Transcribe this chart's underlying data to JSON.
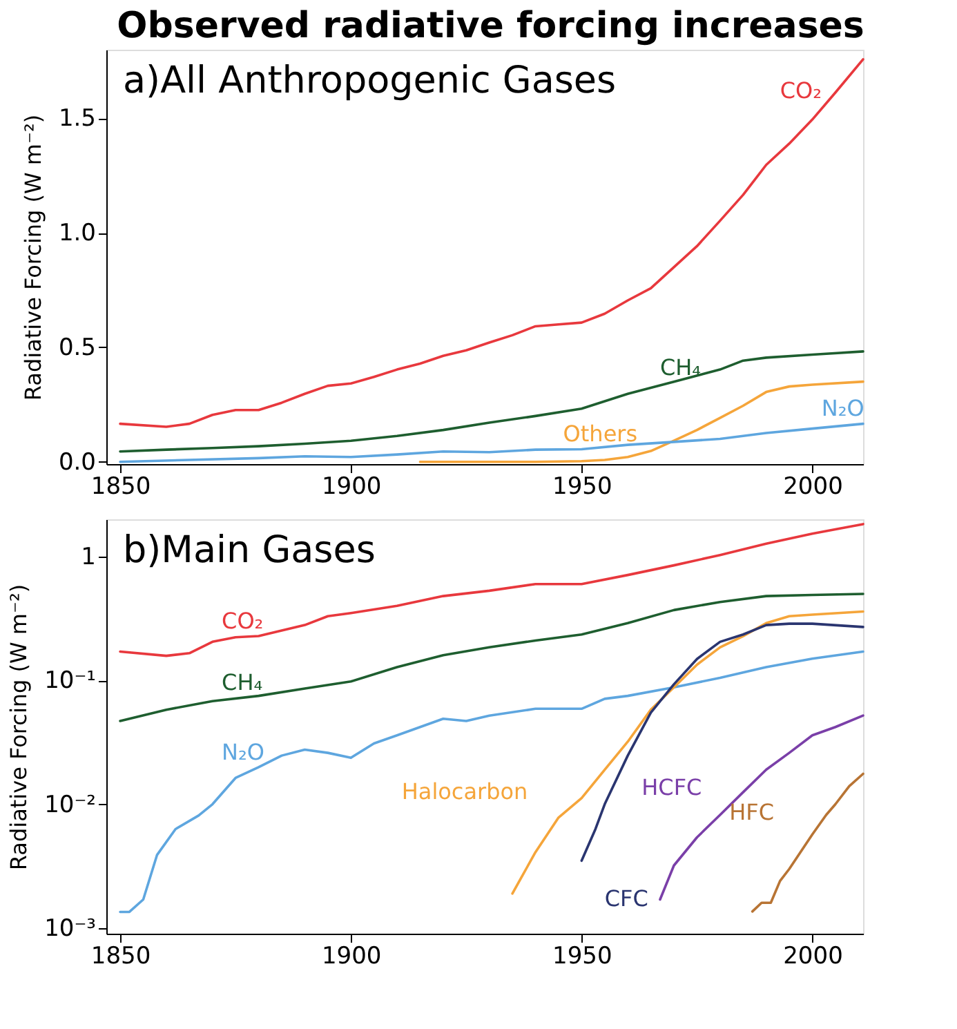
{
  "chart_data": [
    {
      "type": "line",
      "title": "Observed radiative forcing increases",
      "subtitle": "a)All Anthropogenic Gases",
      "ylabel": "Radiative Forcing (W m⁻²)",
      "xlim": [
        1847,
        2011
      ],
      "xticks": [
        1850,
        1900,
        1950,
        2000
      ],
      "ylim": [
        -0.01,
        1.8
      ],
      "yticks": [
        {
          "value": 0,
          "label": "0.0"
        },
        0.5,
        {
          "value": 1,
          "label": "1.0"
        },
        1.5
      ],
      "grid": false,
      "series": [
        {
          "name": "CO₂",
          "color": "#e8383d",
          "x": [
            1850,
            1860,
            1865,
            1870,
            1875,
            1880,
            1885,
            1890,
            1895,
            1900,
            1905,
            1910,
            1915,
            1920,
            1925,
            1930,
            1935,
            1940,
            1945,
            1950,
            1955,
            1960,
            1965,
            1970,
            1975,
            1980,
            1985,
            1990,
            1995,
            2000,
            2005,
            2011
          ],
          "values": [
            0.166,
            0.153,
            0.166,
            0.205,
            0.226,
            0.226,
            0.258,
            0.297,
            0.332,
            0.342,
            0.371,
            0.403,
            0.429,
            0.463,
            0.487,
            0.521,
            0.553,
            0.592,
            0.6,
            0.608,
            0.647,
            0.705,
            0.758,
            0.85,
            0.942,
            1.053,
            1.166,
            1.297,
            1.39,
            1.495,
            1.613,
            1.758
          ]
        },
        {
          "name": "CH₄",
          "color": "#1e5e2f",
          "x": [
            1850,
            1860,
            1870,
            1880,
            1890,
            1900,
            1910,
            1920,
            1930,
            1940,
            1950,
            1960,
            1970,
            1980,
            1985,
            1990,
            2000,
            2011
          ],
          "values": [
            0.045,
            0.053,
            0.06,
            0.068,
            0.079,
            0.092,
            0.113,
            0.139,
            0.171,
            0.2,
            0.232,
            0.297,
            0.35,
            0.403,
            0.442,
            0.455,
            0.468,
            0.482
          ]
        },
        {
          "name": "Others",
          "color": "#f5a53a",
          "x": [
            1915,
            1940,
            1950,
            1955,
            1960,
            1965,
            1970,
            1975,
            1980,
            1985,
            1990,
            1995,
            2000,
            2011
          ],
          "values": [
            0,
            0,
            0.003,
            0.008,
            0.021,
            0.047,
            0.092,
            0.139,
            0.192,
            0.245,
            0.305,
            0.329,
            0.337,
            0.35
          ]
        },
        {
          "name": "N₂O",
          "color": "#5ea6df",
          "x": [
            1850,
            1880,
            1890,
            1900,
            1910,
            1920,
            1930,
            1940,
            1950,
            1960,
            1970,
            1980,
            1990,
            2000,
            2011
          ],
          "values": [
            0,
            0.016,
            0.024,
            0.021,
            0.032,
            0.045,
            0.042,
            0.053,
            0.055,
            0.074,
            0.087,
            0.1,
            0.126,
            0.145,
            0.166
          ]
        }
      ]
    },
    {
      "type": "line",
      "subtitle": "b)Main Gases",
      "ylabel": "Radiative Forcing (W m⁻²)",
      "xlim": [
        1847,
        2011
      ],
      "xticks": [
        1850,
        1900,
        1950,
        2000
      ],
      "ylim": [
        0.0009,
        2
      ],
      "yticks": [
        {
          "value": 0.001,
          "label": "10⁻³"
        },
        {
          "value": 0.01,
          "label": "10⁻²"
        },
        {
          "value": 0.1,
          "label": "10⁻¹"
        },
        1
      ],
      "log": true,
      "grid": false,
      "series": [
        {
          "name": "CO₂",
          "color": "#e8383d",
          "x": [
            1850,
            1860,
            1865,
            1870,
            1875,
            1880,
            1890,
            1895,
            1900,
            1910,
            1920,
            1930,
            1940,
            1950,
            1960,
            1970,
            1980,
            1990,
            2000,
            2011
          ],
          "values": [
            0.171,
            0.158,
            0.166,
            0.205,
            0.223,
            0.228,
            0.28,
            0.33,
            0.35,
            0.4,
            0.48,
            0.53,
            0.6,
            0.6,
            0.71,
            0.85,
            1.03,
            1.27,
            1.53,
            1.83
          ]
        },
        {
          "name": "CH₄",
          "color": "#1e5e2f",
          "x": [
            1850,
            1860,
            1870,
            1880,
            1890,
            1900,
            1910,
            1920,
            1930,
            1940,
            1950,
            1960,
            1970,
            1980,
            1990,
            2000,
            2011
          ],
          "values": [
            0.047,
            0.058,
            0.068,
            0.075,
            0.086,
            0.098,
            0.128,
            0.16,
            0.185,
            0.21,
            0.235,
            0.29,
            0.37,
            0.43,
            0.48,
            0.49,
            0.5
          ]
        },
        {
          "name": "N₂O",
          "color": "#5ea6df",
          "x": [
            1850,
            1852,
            1855,
            1858,
            1862,
            1867,
            1870,
            1875,
            1880,
            1885,
            1890,
            1895,
            1900,
            1905,
            1910,
            1915,
            1920,
            1925,
            1930,
            1940,
            1950,
            1955,
            1960,
            1970,
            1980,
            1990,
            2000,
            2011
          ],
          "values": [
            0.00135,
            0.00135,
            0.0017,
            0.0039,
            0.0063,
            0.0081,
            0.01,
            0.0163,
            0.0199,
            0.0247,
            0.0276,
            0.026,
            0.0237,
            0.031,
            0.036,
            0.042,
            0.049,
            0.047,
            0.052,
            0.059,
            0.059,
            0.071,
            0.075,
            0.088,
            0.105,
            0.128,
            0.15,
            0.171
          ]
        },
        {
          "name": "Halocarbon",
          "color": "#f5a53a",
          "x": [
            1935,
            1940,
            1945,
            1950,
            1955,
            1960,
            1965,
            1970,
            1975,
            1980,
            1985,
            1990,
            1995,
            2000,
            2011
          ],
          "values": [
            0.0019,
            0.0041,
            0.0078,
            0.0112,
            0.019,
            0.032,
            0.058,
            0.088,
            0.134,
            0.185,
            0.228,
            0.29,
            0.33,
            0.34,
            0.36
          ]
        },
        {
          "name": "CFC",
          "color": "#2a3570",
          "x": [
            1950,
            1953,
            1955,
            1960,
            1965,
            1970,
            1975,
            1980,
            1985,
            1990,
            1995,
            2000,
            2011
          ],
          "values": [
            0.0035,
            0.0063,
            0.01,
            0.0247,
            0.055,
            0.093,
            0.149,
            0.205,
            0.235,
            0.28,
            0.287,
            0.287,
            0.27
          ]
        },
        {
          "name": "HCFC",
          "color": "#7a3fa8",
          "x": [
            1967,
            1970,
            1975,
            1980,
            1985,
            1990,
            1995,
            2000,
            2005,
            2011
          ],
          "values": [
            0.0017,
            0.0032,
            0.0054,
            0.0082,
            0.0125,
            0.019,
            0.026,
            0.036,
            0.042,
            0.052
          ]
        },
        {
          "name": "HFC",
          "color": "#b87434",
          "x": [
            1987,
            1989,
            1991,
            1993,
            1995,
            2000,
            2003,
            2005,
            2008,
            2011
          ],
          "values": [
            0.00136,
            0.0016,
            0.0016,
            0.0024,
            0.003,
            0.0057,
            0.0082,
            0.01,
            0.014,
            0.0176
          ]
        }
      ]
    }
  ]
}
